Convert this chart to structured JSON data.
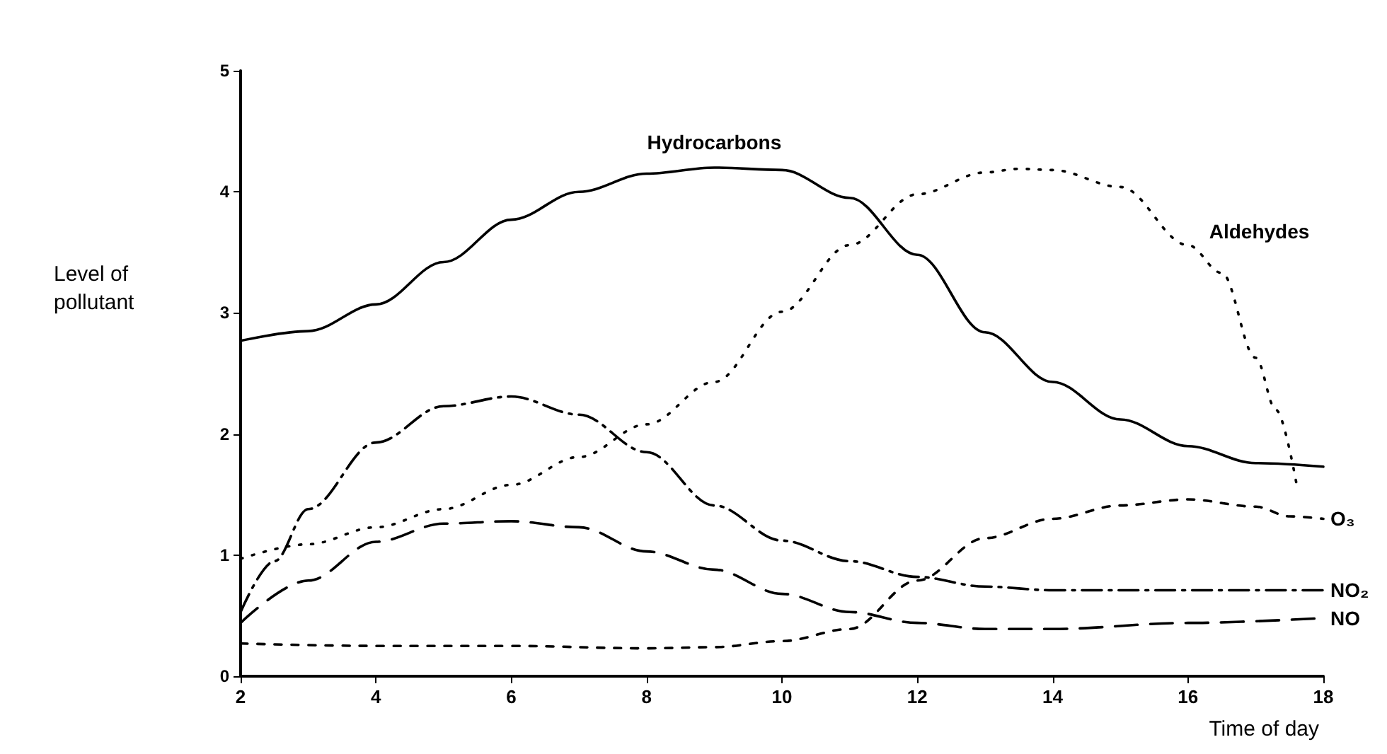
{
  "chart_data": {
    "type": "line",
    "xlabel": "Time of day",
    "ylabel": "Level of pollutant",
    "xlim": [
      2,
      18
    ],
    "xticks": [
      2,
      4,
      6,
      8,
      10,
      12,
      14,
      16,
      18
    ],
    "ylim": [
      0,
      5
    ],
    "yticks": [
      0,
      1,
      2,
      3,
      4,
      5
    ],
    "grid": false,
    "legend": false,
    "marker": "none",
    "series": [
      {
        "name": "Hydrocarbons",
        "color": "#000000",
        "line_style": "solid",
        "x": [
          2,
          3,
          4,
          5,
          6,
          7,
          8,
          9,
          10,
          11,
          12,
          13,
          14,
          15,
          16,
          17,
          18
        ],
        "values": [
          2.77,
          2.85,
          3.07,
          3.42,
          3.77,
          4.0,
          4.15,
          4.2,
          4.18,
          3.95,
          3.48,
          2.84,
          2.43,
          2.12,
          1.9,
          1.76,
          1.73
        ]
      },
      {
        "name": "Aldehydes",
        "color": "#000000",
        "line_style": "dotted",
        "x": [
          2,
          3,
          4,
          5,
          6,
          7,
          8,
          9,
          10,
          11,
          12,
          13,
          13.5,
          14,
          15,
          16,
          16.5,
          17,
          17.3,
          17.6
        ],
        "values": [
          0.97,
          1.09,
          1.23,
          1.38,
          1.58,
          1.81,
          2.08,
          2.43,
          3.01,
          3.56,
          3.98,
          4.16,
          4.19,
          4.18,
          4.04,
          3.56,
          3.33,
          2.63,
          2.2,
          1.6
        ]
      },
      {
        "name": "O₃",
        "color": "#000000",
        "line_style": "dashed",
        "x": [
          2,
          4,
          6,
          8,
          9,
          10,
          11,
          12,
          13,
          14,
          15,
          16,
          17,
          17.5,
          18
        ],
        "values": [
          0.27,
          0.25,
          0.25,
          0.23,
          0.24,
          0.29,
          0.39,
          0.79,
          1.14,
          1.3,
          1.41,
          1.46,
          1.4,
          1.32,
          1.3
        ]
      },
      {
        "name": "NO₂",
        "color": "#000000",
        "line_style": "dashed",
        "x": [
          2,
          2.5,
          3,
          4,
          5,
          6,
          7,
          8,
          9,
          10,
          11,
          12,
          13,
          14,
          16,
          18
        ],
        "values": [
          0.53,
          0.95,
          1.38,
          1.93,
          2.23,
          2.31,
          2.16,
          1.85,
          1.41,
          1.12,
          0.95,
          0.82,
          0.74,
          0.71,
          0.71,
          0.71
        ]
      },
      {
        "name": "NO",
        "color": "#000000",
        "line_style": "dashed",
        "x": [
          2,
          3,
          4,
          5,
          6,
          7,
          8,
          9,
          10,
          11,
          12,
          13,
          14,
          16,
          18
        ],
        "values": [
          0.44,
          0.79,
          1.11,
          1.26,
          1.28,
          1.23,
          1.03,
          0.88,
          0.68,
          0.53,
          0.44,
          0.39,
          0.39,
          0.44,
          0.48
        ]
      }
    ]
  }
}
